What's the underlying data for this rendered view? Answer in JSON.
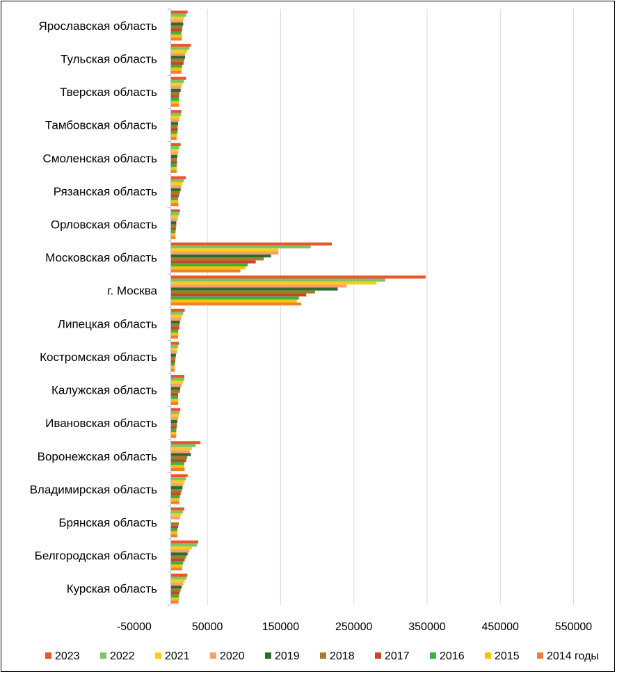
{
  "chart_data": {
    "type": "bar",
    "orientation": "horizontal",
    "title": "",
    "xlabel": "",
    "ylabel": "",
    "xlim": [
      -50000,
      550000
    ],
    "x_ticks": [
      -50000,
      50000,
      150000,
      250000,
      350000,
      450000,
      550000
    ],
    "x_tick_labels": [
      "-50000",
      "50000",
      "150000",
      "250000",
      "350000",
      "450000",
      "550000"
    ],
    "grid": true,
    "legend_position": "bottom",
    "legend_suffix": "годы",
    "categories": [
      "Ярославская область",
      "Тульская область",
      "Тверская область",
      "Тамбовская область",
      "Смоленская область",
      "Рязанская область",
      "Орловская область",
      "Московская область",
      "г. Москва",
      "Липецкая область",
      "Костромская область",
      "Калужская область",
      "Ивановская область",
      "Воронежская область",
      "Владимирская область",
      "Брянская область",
      "Белгородская область",
      "Курская область"
    ],
    "series": [
      {
        "name": "2023",
        "color": "#E8562A",
        "values": [
          23000,
          27500,
          21000,
          14500,
          13500,
          20500,
          12500,
          220000,
          348000,
          19000,
          11000,
          18500,
          13000,
          40500,
          23000,
          18500,
          37500,
          22500
        ]
      },
      {
        "name": "2022",
        "color": "#7CC56A",
        "values": [
          21000,
          25500,
          18000,
          14000,
          11500,
          18000,
          11500,
          191000,
          293000,
          17000,
          10000,
          18500,
          12000,
          34000,
          20500,
          16500,
          35500,
          21500
        ]
      },
      {
        "name": "2021",
        "color": "#FFCC1A",
        "values": [
          18500,
          22500,
          16000,
          12000,
          10500,
          16000,
          10000,
          147000,
          281000,
          15500,
          9000,
          16500,
          11000,
          29000,
          19000,
          14000,
          29000,
          19000
        ]
      },
      {
        "name": "2020",
        "color": "#F5A06E",
        "values": [
          16500,
          19500,
          14000,
          11000,
          10000,
          14500,
          9000,
          147000,
          240000,
          14000,
          8500,
          15000,
          10000,
          26000,
          17000,
          12500,
          25500,
          17000
        ]
      },
      {
        "name": "2019",
        "color": "#2E6B2E",
        "values": [
          17000,
          19500,
          13500,
          10000,
          9000,
          13500,
          7500,
          137000,
          228000,
          12500,
          7000,
          13000,
          9000,
          27500,
          16000,
          0,
          23000,
          15000
        ]
      },
      {
        "name": "2018",
        "color": "#A07E2A",
        "values": [
          16000,
          18500,
          12000,
          9500,
          8500,
          12500,
          7500,
          127000,
          197000,
          12000,
          6500,
          12500,
          8500,
          22500,
          15000,
          11000,
          21000,
          13500
        ]
      },
      {
        "name": "2017",
        "color": "#C04A22",
        "values": [
          15500,
          17500,
          11000,
          9500,
          8500,
          11000,
          7000,
          116000,
          185000,
          11500,
          6000,
          10000,
          8000,
          21000,
          13500,
          10000,
          19000,
          12000
        ]
      },
      {
        "name": "2016",
        "color": "#3CB043",
        "values": [
          14500,
          15500,
          11500,
          9000,
          8000,
          10000,
          6500,
          105000,
          175000,
          10000,
          5500,
          10000,
          7500,
          18500,
          12500,
          9000,
          17000,
          11000
        ]
      },
      {
        "name": "2015",
        "color": "#FFC000",
        "values": [
          15500,
          15000,
          11500,
          8500,
          8000,
          10000,
          6500,
          102000,
          172000,
          10500,
          5500,
          10500,
          7500,
          18500,
          11500,
          9000,
          16000,
          11000
        ]
      },
      {
        "name": "2014",
        "color": "#F08030",
        "values": [
          15000,
          14500,
          11000,
          8000,
          8000,
          10500,
          6500,
          95000,
          178000,
          10000,
          5500,
          10000,
          7500,
          19000,
          11500,
          9000,
          15500,
          10500
        ]
      }
    ]
  }
}
